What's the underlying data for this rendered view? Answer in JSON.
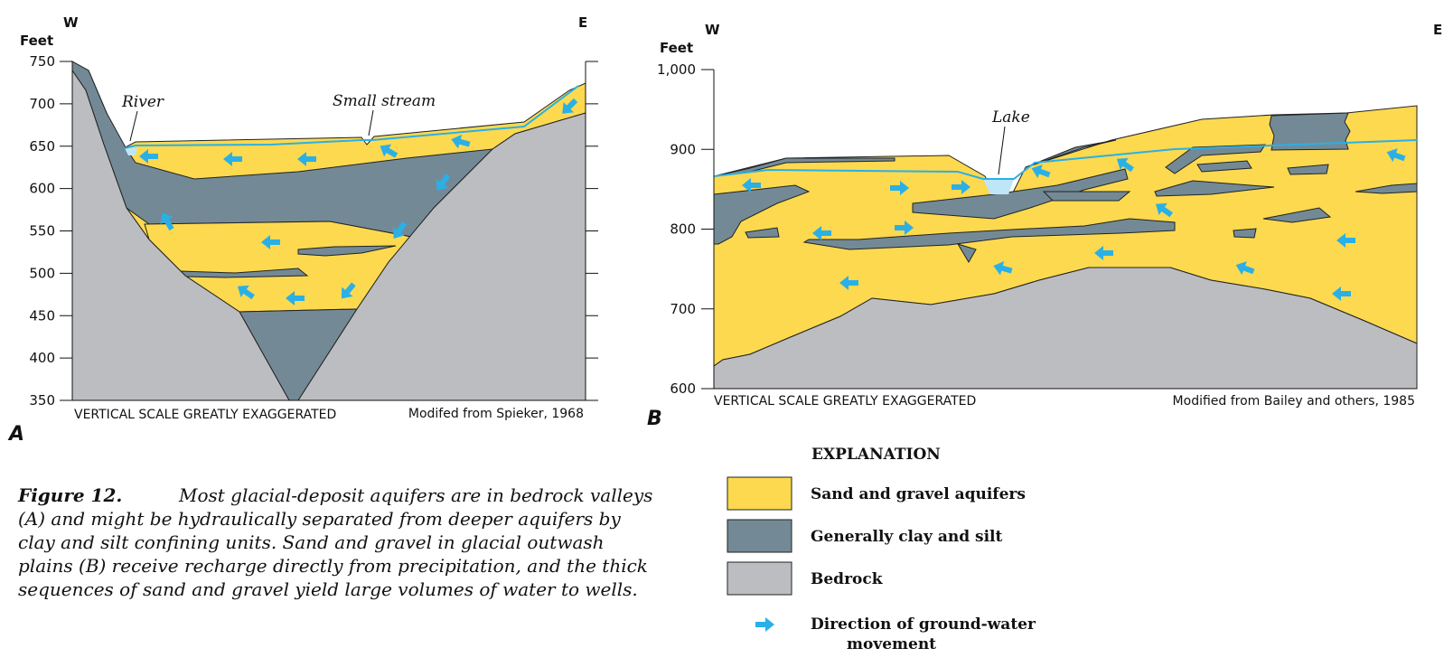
{
  "panel_a": {
    "label": "A",
    "west": "W",
    "east": "E",
    "axis_unit": "Feet",
    "yticks": [
      "750",
      "700",
      "650",
      "600",
      "550",
      "500",
      "450",
      "400",
      "350"
    ],
    "river": "River",
    "stream": "Small stream",
    "scale_note": "VERTICAL SCALE GREATLY EXAGGERATED",
    "source": "Modifed from Spieker, 1968"
  },
  "panel_b": {
    "label": "B",
    "west": "W",
    "east": "E",
    "axis_unit": "Feet",
    "yticks": [
      "1,000",
      "900",
      "800",
      "700",
      "600"
    ],
    "lake": "Lake",
    "scale_note": "VERTICAL SCALE GREATLY EXAGGERATED",
    "source": "Modified from Bailey and others, 1985"
  },
  "caption": {
    "figure": "Figure 12.",
    "lines": [
      "Most glacial-deposit aquifers are in bedrock valleys",
      "(A) and might be hydraulically separated from deeper aquifers by",
      "clay and silt confining units. Sand and gravel in glacial outwash",
      "plains (B) receive recharge directly from precipitation, and the thick",
      "sequences of sand and gravel yield large volumes of water to wells."
    ]
  },
  "explanation": {
    "title": "EXPLANATION",
    "items": [
      "Sand and gravel aquifers",
      "Generally clay and silt",
      "Bedrock",
      "Direction of ground-water movement"
    ]
  }
}
